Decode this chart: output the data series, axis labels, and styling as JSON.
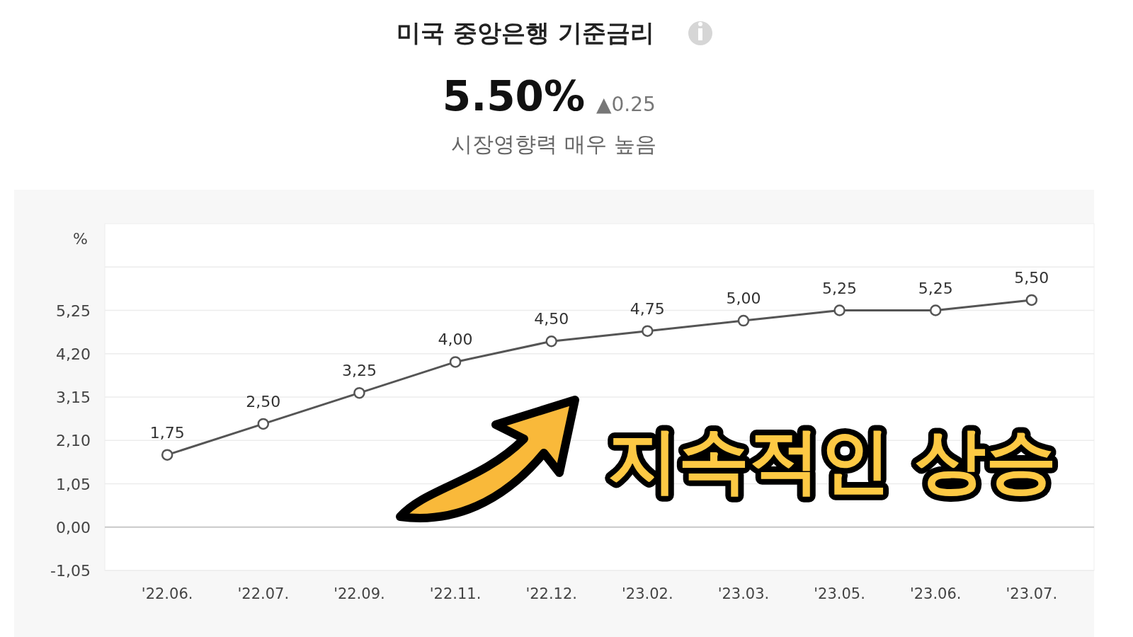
{
  "chart_data": {
    "type": "line",
    "title": "미국 중앙은행 기준금리",
    "ylabel": "%",
    "categories": [
      "'22.06.",
      "'22.07.",
      "'22.09.",
      "'22.11.",
      "'22.12.",
      "'23.02.",
      "'23.03.",
      "'23.05.",
      "'23.06.",
      "'23.07."
    ],
    "series": [
      {
        "color": "#555555",
        "values": [
          1.75,
          2.5,
          3.25,
          4,
          4.5,
          4.75,
          5,
          5.25,
          5.25,
          5.5
        ],
        "value_labels": [
          "1,75",
          "2,50",
          "3,25",
          "4,00",
          "4,50",
          "4,75",
          "5,00",
          "5,25",
          "5,25",
          "5,50"
        ]
      }
    ],
    "ylim": [
      -1.05,
      7.35
    ],
    "yticks": [
      {
        "value": -1.05,
        "label": "-1,05"
      },
      {
        "value": 0,
        "label": "0,00"
      },
      {
        "value": 1.05,
        "label": "1,05"
      },
      {
        "value": 2.1,
        "label": "2,10"
      },
      {
        "value": 3.15,
        "label": "3,15"
      },
      {
        "value": 4.2,
        "label": "4,20"
      },
      {
        "value": 5.25,
        "label": "5,25"
      },
      {
        "value": 6.3,
        "label": null
      }
    ],
    "grid": "y",
    "marker": "circle",
    "line_style": "solid",
    "annotations": [
      "5.50%",
      "▲0.25",
      "시장영향력 매우 높음",
      "지속적인 상승"
    ]
  }
}
